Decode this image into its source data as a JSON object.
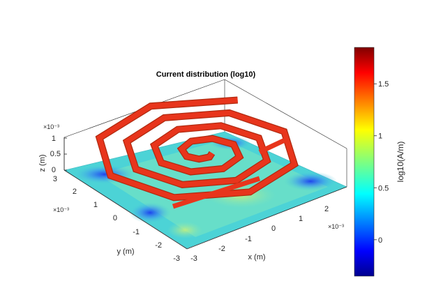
{
  "chart_data": {
    "type": "surface",
    "title": "Current distribution (log10)",
    "xlabel": "x (m)",
    "ylabel": "y (m)",
    "zlabel": "z (m)",
    "x_ticks": [
      "-3",
      "-2",
      "-1",
      "0",
      "1",
      "2"
    ],
    "y_ticks": [
      "3",
      "2",
      "1",
      "0",
      "-1",
      "-2",
      "-3"
    ],
    "z_ticks": [
      "1",
      "0.5",
      "0"
    ],
    "x_exponent": "×10⁻³",
    "y_exponent": "×10⁻³",
    "z_exponent": "×10⁻³",
    "xlim": [
      -3,
      3
    ],
    "ylim": [
      -3,
      3
    ],
    "colorbar": {
      "label": "log10(A/m)",
      "ticks": [
        "1.5",
        "1",
        "0.5",
        "0"
      ],
      "tick_values": [
        1.5,
        1,
        0.5,
        0
      ],
      "range": [
        -0.35,
        1.85
      ],
      "colormap": "jet"
    },
    "colors": {
      "coil": "#e8351c",
      "coil_edge": "#b02a10",
      "plane": "#4cd3d6"
    }
  }
}
